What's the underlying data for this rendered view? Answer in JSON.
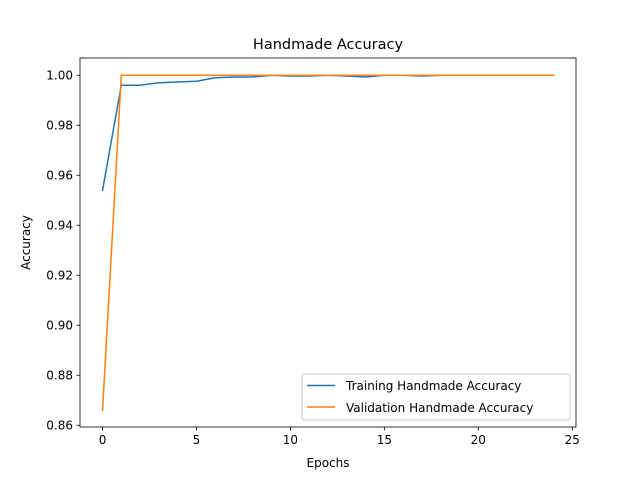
{
  "chart_data": {
    "type": "line",
    "title": "Handmade Accuracy",
    "xlabel": "Epochs",
    "ylabel": "Accuracy",
    "xlim": [
      -1.2,
      25.2
    ],
    "ylim": [
      0.8593,
      1.0069
    ],
    "x_ticks": [
      0,
      5,
      10,
      15,
      20,
      25
    ],
    "y_ticks": [
      0.86,
      0.88,
      0.9,
      0.92,
      0.94,
      0.96,
      0.98,
      1.0
    ],
    "x_tick_labels": [
      "0",
      "5",
      "10",
      "15",
      "20",
      "25"
    ],
    "y_tick_labels": [
      "0.86",
      "0.88",
      "0.90",
      "0.92",
      "0.94",
      "0.96",
      "0.98",
      "1.00"
    ],
    "grid": false,
    "legend_position": "lower-right",
    "x": [
      0,
      1,
      2,
      3,
      4,
      5,
      6,
      7,
      8,
      9,
      10,
      11,
      12,
      13,
      14,
      15,
      16,
      17,
      18,
      19,
      20,
      21,
      22,
      23,
      24
    ],
    "series": [
      {
        "name": "Training Handmade Accuracy",
        "color": "#1f77b4",
        "values": [
          0.954,
          0.996,
          0.996,
          0.997,
          0.9973,
          0.9976,
          0.999,
          0.9993,
          0.9993,
          1.0,
          0.9997,
          0.9997,
          1.0,
          0.9997,
          0.9993,
          1.0,
          1.0,
          0.9997,
          1.0,
          1.0,
          1.0,
          1.0,
          1.0,
          1.0,
          1.0
        ]
      },
      {
        "name": "Validation Handmade Accuracy",
        "color": "#ff7f0e",
        "values": [
          0.866,
          1.0,
          1.0,
          1.0,
          1.0,
          1.0,
          1.0,
          1.0,
          1.0,
          1.0,
          1.0,
          1.0,
          1.0,
          1.0,
          1.0,
          1.0,
          1.0,
          1.0,
          1.0,
          1.0,
          1.0,
          1.0,
          1.0,
          1.0,
          1.0
        ]
      }
    ]
  }
}
